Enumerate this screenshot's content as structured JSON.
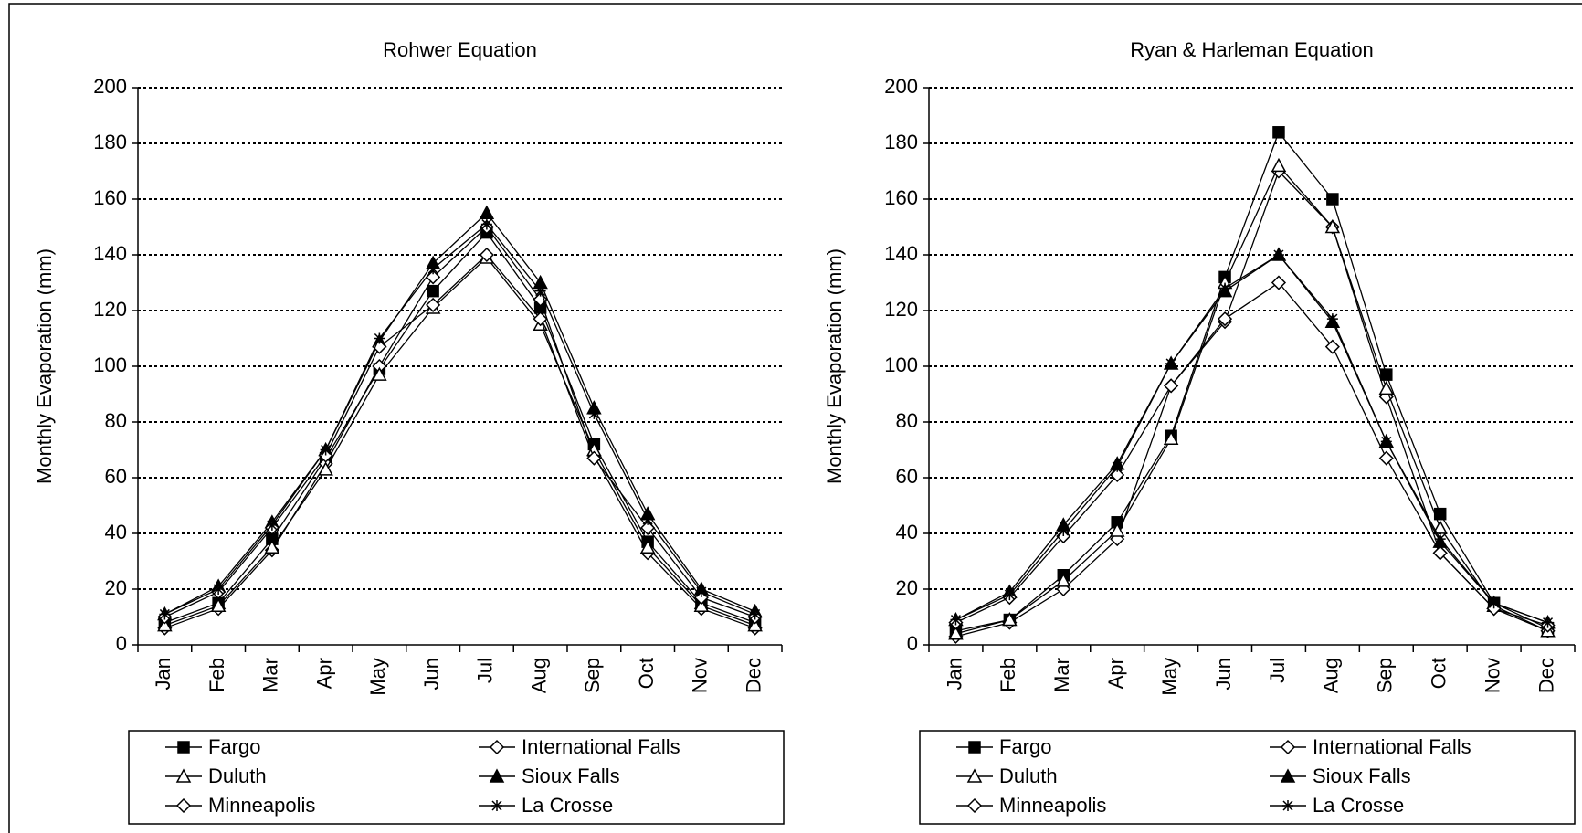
{
  "chart_data": [
    {
      "type": "line",
      "title": "Rohwer Equation",
      "y_label": "Monthly Evaporation (mm)",
      "categories": [
        "Jan",
        "Feb",
        "Mar",
        "Apr",
        "May",
        "Jun",
        "Jul",
        "Aug",
        "Sep",
        "Oct",
        "Nov",
        "Dec"
      ],
      "ylim": [
        0,
        200
      ],
      "yticks": [
        0,
        20,
        40,
        60,
        80,
        100,
        120,
        140,
        160,
        180,
        200
      ],
      "grid": true,
      "series": [
        {
          "name": "Fargo",
          "color": "#000000",
          "marker": "square-filled",
          "values": [
            8,
            15,
            38,
            67,
            99,
            127,
            148,
            121,
            72,
            37,
            15,
            8
          ]
        },
        {
          "name": "International Falls",
          "color": "#000000",
          "marker": "diamond-open",
          "values": [
            6,
            13,
            34,
            65,
            100,
            132,
            150,
            124,
            68,
            33,
            13,
            6
          ]
        },
        {
          "name": "Duluth",
          "color": "#000000",
          "marker": "triangle-open",
          "values": [
            7,
            14,
            35,
            63,
            97,
            121,
            139,
            115,
            70,
            35,
            14,
            7
          ]
        },
        {
          "name": "Sioux Falls",
          "color": "#000000",
          "marker": "triangle-filled",
          "values": [
            11,
            21,
            44,
            70,
            109,
            137,
            155,
            130,
            85,
            47,
            20,
            12
          ]
        },
        {
          "name": "Minneapolis",
          "color": "#000000",
          "marker": "diamond-open",
          "values": [
            10,
            19,
            42,
            68,
            107,
            122,
            140,
            117,
            67,
            42,
            17,
            10
          ]
        },
        {
          "name": "La Crosse",
          "color": "#000000",
          "marker": "star",
          "values": [
            11,
            20,
            43,
            70,
            110,
            135,
            151,
            127,
            83,
            45,
            19,
            11
          ]
        }
      ]
    },
    {
      "type": "line",
      "title": "Ryan & Harleman Equation",
      "y_label": "Monthly Evaporation (mm)",
      "categories": [
        "Jan",
        "Feb",
        "Mar",
        "Apr",
        "May",
        "Jun",
        "Jul",
        "Aug",
        "Sep",
        "Oct",
        "Nov",
        "Dec"
      ],
      "ylim": [
        0,
        200
      ],
      "yticks": [
        0,
        20,
        40,
        60,
        80,
        100,
        120,
        140,
        160,
        180,
        200
      ],
      "grid": true,
      "series": [
        {
          "name": "Fargo",
          "color": "#000000",
          "marker": "square-filled",
          "values": [
            5,
            9,
            25,
            44,
            75,
            132,
            184,
            160,
            97,
            47,
            15,
            6
          ]
        },
        {
          "name": "International Falls",
          "color": "#000000",
          "marker": "diamond-open",
          "values": [
            3,
            8,
            20,
            38,
            93,
            116,
            170,
            150,
            89,
            33,
            13,
            5
          ]
        },
        {
          "name": "Duluth",
          "color": "#000000",
          "marker": "triangle-open",
          "values": [
            4,
            9,
            23,
            41,
            74,
            130,
            172,
            150,
            92,
            42,
            14,
            5
          ]
        },
        {
          "name": "Sioux Falls",
          "color": "#000000",
          "marker": "triangle-filled",
          "values": [
            9,
            19,
            43,
            65,
            101,
            127,
            140,
            116,
            73,
            37,
            15,
            8
          ]
        },
        {
          "name": "Minneapolis",
          "color": "#000000",
          "marker": "diamond-open",
          "values": [
            8,
            17,
            39,
            61,
            93,
            117,
            130,
            107,
            67,
            33,
            13,
            7
          ]
        },
        {
          "name": "La Crosse",
          "color": "#000000",
          "marker": "star",
          "values": [
            9,
            18,
            41,
            64,
            101,
            128,
            140,
            117,
            73,
            38,
            15,
            8
          ]
        }
      ]
    }
  ]
}
